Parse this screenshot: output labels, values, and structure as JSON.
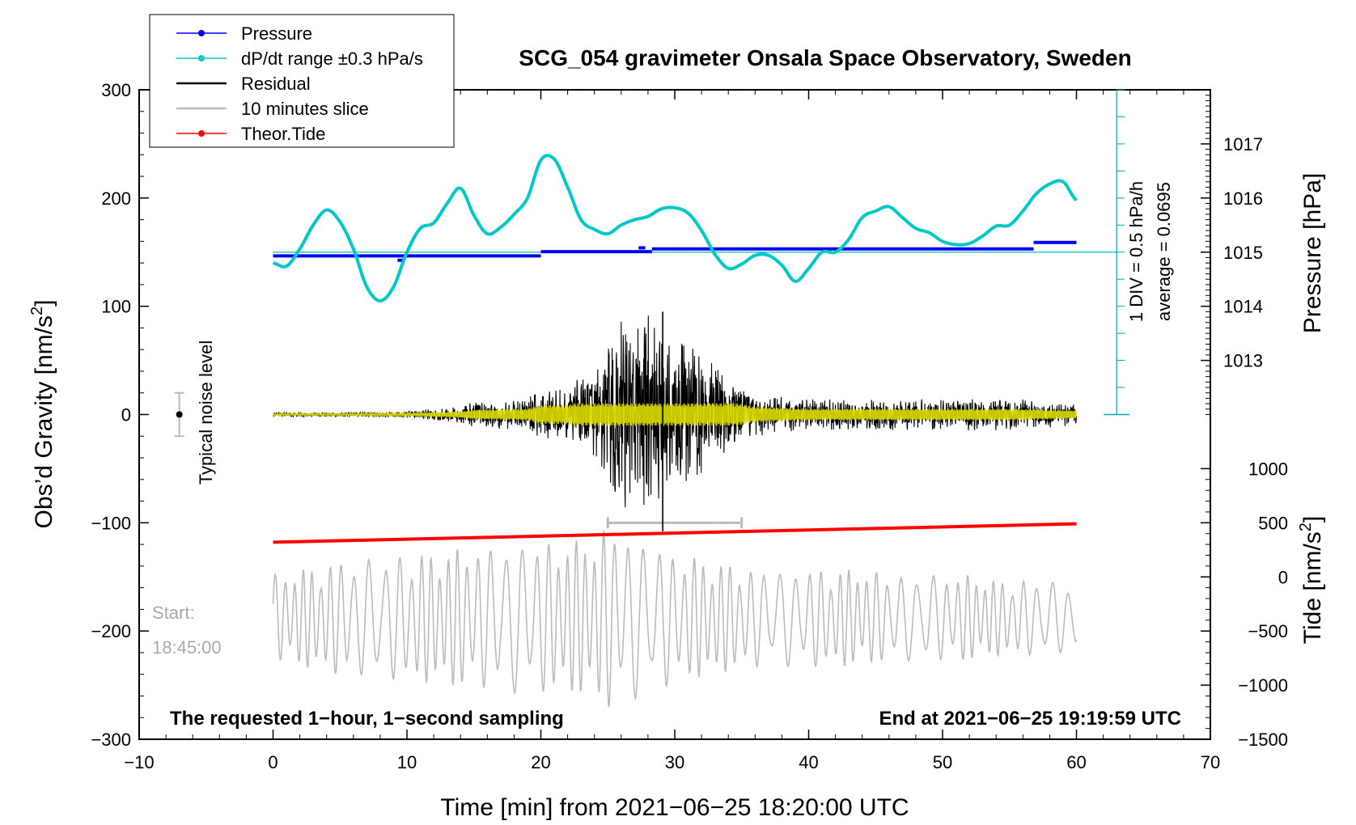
{
  "chart_data": {
    "type": "line",
    "title": "SCG_054 gravimeter Onsala Space Observatory, Sweden",
    "xlabel": "Time [min] from 2021−06−25 18:20:00 UTC",
    "ylabel_left": "Obs’d Gravity [nm/s²]",
    "ylabel_right_top": "Pressure [hPa]",
    "ylabel_right_bottom": "Tide [nm/s²]",
    "xlim": [
      -10,
      70
    ],
    "ylim_left": [
      -300,
      300
    ],
    "pressure_lim": [
      1012,
      1018
    ],
    "tide_lim": [
      -1500,
      1500
    ],
    "x_ticks": [
      -10,
      0,
      10,
      20,
      30,
      40,
      50,
      60,
      70
    ],
    "x_tick_labels": [
      "−10",
      "0",
      "10",
      "20",
      "30",
      "40",
      "50",
      "60",
      "70"
    ],
    "y_left_ticks": [
      -300,
      -200,
      -100,
      0,
      100,
      200,
      300
    ],
    "y_left_tick_labels": [
      "−300",
      "−200",
      "−100",
      "0",
      "100",
      "200",
      "300"
    ],
    "pressure_ticks": [
      1013,
      1014,
      1015,
      1016,
      1017
    ],
    "pressure_tick_labels": [
      "1013",
      "1014",
      "1015",
      "1016",
      "1017"
    ],
    "tide_ticks": [
      -1500,
      -1000,
      -500,
      0,
      500,
      1000
    ],
    "tide_tick_labels": [
      "−1500",
      "−1000",
      "−500",
      "0",
      "500",
      "1000"
    ],
    "legend": {
      "position": "top-left",
      "entries": [
        {
          "label": "Pressure",
          "color": "#0000ee",
          "marker": true
        },
        {
          "label": "dP/dt range ±0.3 hPa/s",
          "color": "#00cccc",
          "marker": true
        },
        {
          "label": "Residual",
          "color": "#000000",
          "marker": false
        },
        {
          "label": "10 minutes slice",
          "color": "#bbbbbb",
          "marker": false
        },
        {
          "label": "Theor.Tide",
          "color": "#ff0000",
          "marker": true
        }
      ]
    },
    "annotations": {
      "noise_label": "Typical noise level",
      "div_label": "1 DIV = 0.5 hPa/h",
      "average_label": "average = 0.0695",
      "start_label": "Start:",
      "start_time": "18:45:00",
      "bottom_left": "The requested 1−hour, 1−second sampling",
      "bottom_right": "End at 2021−06−25 19:19:59 UTC"
    },
    "slice_range_min": [
      25,
      35
    ],
    "noise_level": {
      "x": -7,
      "center": 0,
      "half_range": 20
    },
    "series": {
      "pressure_steps_hPa": [
        {
          "x0": 0,
          "x1": 20,
          "value": 1014.93
        },
        {
          "x0": 9.3,
          "x1": 9.8,
          "value": 1014.85
        },
        {
          "x0": 20,
          "x1": 28.3,
          "value": 1015.01
        },
        {
          "x0": 27.3,
          "x1": 27.8,
          "value": 1015.08
        },
        {
          "x0": 28.3,
          "x1": 56.8,
          "value": 1015.06
        },
        {
          "x0": 56.8,
          "x1": 60,
          "value": 1015.18
        }
      ],
      "pressure_average_hPa": 1015.0,
      "dpdt_curve_gravity": {
        "x": [
          0,
          1,
          2,
          3,
          4,
          5,
          6,
          7,
          8,
          9,
          10,
          11,
          12,
          13,
          14,
          15,
          16,
          17,
          18,
          19,
          20,
          21,
          22,
          23,
          24,
          25,
          26,
          27,
          28,
          29,
          30,
          31,
          32,
          33,
          34,
          35,
          36,
          37,
          38,
          39,
          40,
          41,
          42,
          43,
          44,
          45,
          46,
          47,
          48,
          49,
          50,
          51,
          52,
          53,
          54,
          55,
          56,
          57,
          58,
          59,
          60
        ],
        "y": [
          140,
          137,
          153,
          175,
          189,
          178,
          153,
          118,
          105,
          118,
          150,
          172,
          177,
          195,
          209,
          184,
          167,
          173,
          185,
          200,
          235,
          236,
          210,
          180,
          171,
          167,
          175,
          180,
          183,
          190,
          191,
          186,
          170,
          148,
          135,
          139,
          147,
          147,
          138,
          123,
          135,
          150,
          150,
          162,
          182,
          188,
          192,
          182,
          172,
          168,
          160,
          157,
          158,
          165,
          174,
          175,
          188,
          204,
          213,
          215,
          198
        ]
      },
      "theoretical_tide_gravity": {
        "x": [
          0,
          60
        ],
        "y": [
          -118,
          -101
        ]
      },
      "residual_envelope": {
        "x": [
          0,
          5,
          10,
          14,
          15,
          19,
          20,
          22,
          24,
          25,
          26,
          27,
          28,
          29,
          30,
          31,
          32,
          34,
          36,
          40,
          45,
          50,
          55,
          60
        ],
        "amp": [
          2,
          2,
          3,
          8,
          12,
          15,
          25,
          25,
          45,
          70,
          90,
          85,
          95,
          90,
          80,
          70,
          55,
          35,
          20,
          15,
          15,
          15,
          15,
          10
        ]
      },
      "slice_envelope": {
        "x": [
          0,
          2,
          4,
          6,
          8,
          10,
          12,
          14,
          16,
          18,
          20,
          22,
          24,
          25,
          26,
          28,
          30,
          32,
          34,
          36,
          38,
          40,
          42,
          44,
          46,
          48,
          50,
          52,
          54,
          56,
          58,
          60
        ],
        "amp": [
          40,
          45,
          50,
          55,
          55,
          60,
          60,
          65,
          65,
          70,
          70,
          70,
          75,
          85,
          80,
          70,
          60,
          55,
          50,
          45,
          45,
          45,
          45,
          45,
          40,
          40,
          40,
          40,
          35,
          35,
          35,
          30
        ]
      },
      "slice_center_gravity": -188
    }
  }
}
